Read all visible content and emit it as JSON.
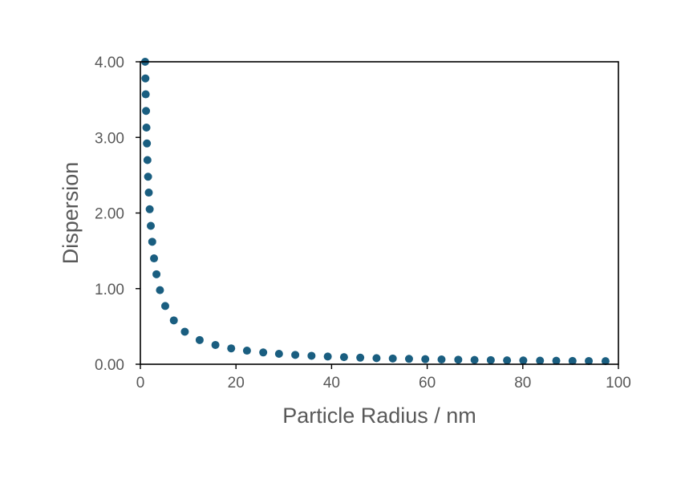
{
  "chart_data": {
    "type": "scatter",
    "title": "",
    "xlabel": "Particle Radius / nm",
    "ylabel": "Dispersion",
    "xlim": [
      0,
      100
    ],
    "ylim": [
      0,
      4
    ],
    "x_ticks": [
      0,
      20,
      40,
      60,
      80,
      100
    ],
    "x_tick_labels": [
      "0",
      "20",
      "40",
      "60",
      "80",
      "100"
    ],
    "y_ticks": [
      0,
      1,
      2,
      3,
      4
    ],
    "y_tick_labels": [
      "0.00",
      "1.00",
      "2.00",
      "3.00",
      "4.00"
    ],
    "grid": false,
    "legend": "none",
    "marker_color": "#1a5e80",
    "series": [
      {
        "x": [
          1.0,
          1.06,
          1.12,
          1.19,
          1.27,
          1.37,
          1.48,
          1.61,
          1.76,
          1.95,
          2.18,
          2.48,
          2.86,
          3.37,
          4.1,
          5.2,
          7.0,
          9.3,
          12.4,
          15.7,
          19.0,
          22.3,
          25.7,
          29.0,
          32.4,
          35.8,
          39.2,
          42.6,
          46.0,
          49.4,
          52.8,
          56.2,
          59.6,
          63.0,
          66.5,
          69.9,
          73.3,
          76.7,
          80.1,
          83.6,
          87.0,
          90.4,
          93.8,
          97.3
        ],
        "y": [
          4.0,
          3.78,
          3.57,
          3.35,
          3.13,
          2.92,
          2.7,
          2.48,
          2.27,
          2.05,
          1.83,
          1.62,
          1.4,
          1.19,
          0.98,
          0.77,
          0.58,
          0.43,
          0.32,
          0.255,
          0.21,
          0.18,
          0.156,
          0.138,
          0.124,
          0.112,
          0.102,
          0.094,
          0.087,
          0.081,
          0.076,
          0.071,
          0.067,
          0.063,
          0.06,
          0.057,
          0.055,
          0.052,
          0.05,
          0.048,
          0.046,
          0.044,
          0.043,
          0.041
        ]
      }
    ]
  }
}
